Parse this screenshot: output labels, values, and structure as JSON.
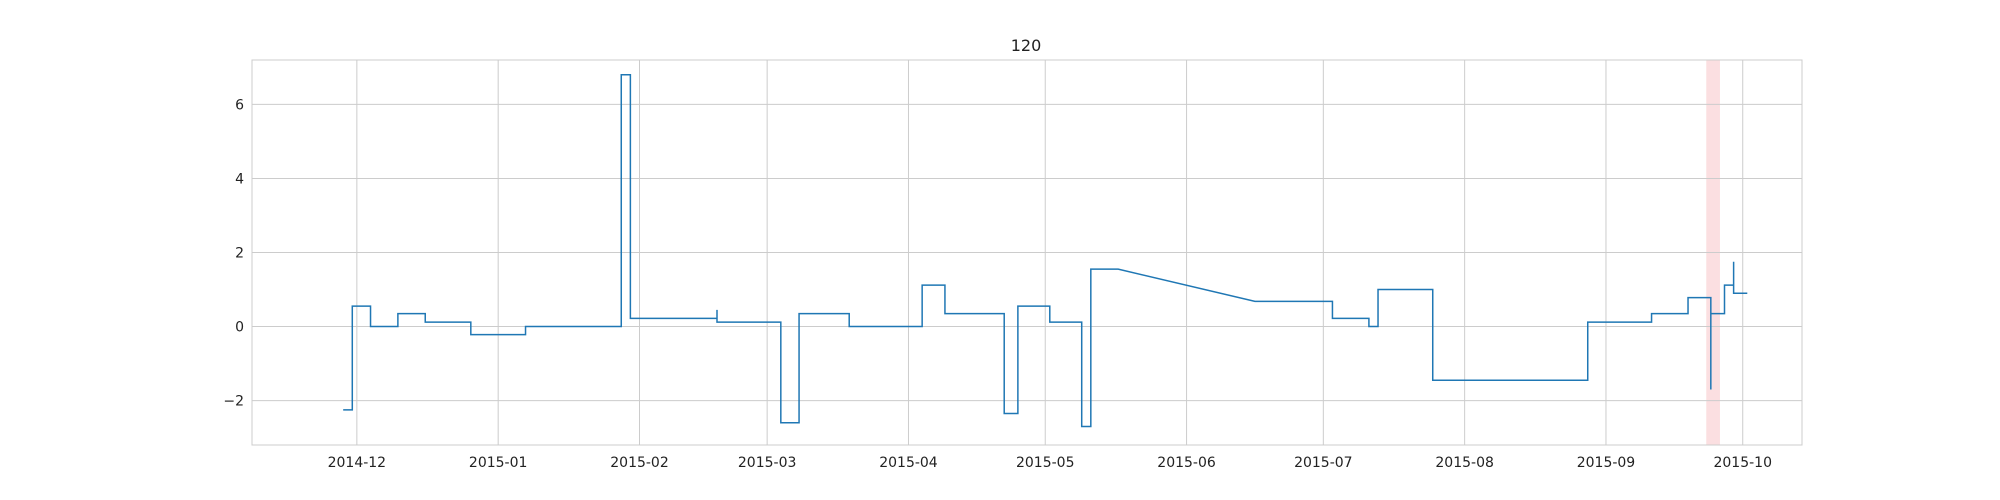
{
  "chart_data": {
    "type": "line",
    "title": "120",
    "xlabel": "",
    "ylabel": "",
    "grid": true,
    "legend": false,
    "x_range": [
      "2014-11-08",
      "2015-10-14"
    ],
    "ylim": [
      -3.2,
      7.2
    ],
    "x_ticks": [
      "2014-12",
      "2015-01",
      "2015-02",
      "2015-03",
      "2015-04",
      "2015-05",
      "2015-06",
      "2015-07",
      "2015-08",
      "2015-09",
      "2015-10"
    ],
    "y_ticks": [
      -2,
      0,
      2,
      4,
      6
    ],
    "y_tick_labels": [
      "−2",
      "0",
      "2",
      "4",
      "6"
    ],
    "highlight_span": {
      "start": "2015-09-23",
      "end": "2015-09-26",
      "color": "#f7c5c9"
    },
    "series": [
      {
        "color": "#1f77b4",
        "points": [
          [
            "2014-11-28",
            -2.25
          ],
          [
            "2014-11-30",
            -2.25
          ],
          [
            "2014-11-30",
            0.55
          ],
          [
            "2014-12-04",
            0.55
          ],
          [
            "2014-12-04",
            0.0
          ],
          [
            "2014-12-10",
            0.0
          ],
          [
            "2014-12-10",
            0.35
          ],
          [
            "2014-12-16",
            0.35
          ],
          [
            "2014-12-16",
            0.12
          ],
          [
            "2014-12-26",
            0.12
          ],
          [
            "2014-12-26",
            -0.22
          ],
          [
            "2015-01-07",
            -0.22
          ],
          [
            "2015-01-07",
            0.0
          ],
          [
            "2015-01-28",
            0.0
          ],
          [
            "2015-01-28",
            6.8
          ],
          [
            "2015-01-30",
            6.8
          ],
          [
            "2015-01-30",
            0.22
          ],
          [
            "2015-02-18",
            0.22
          ],
          [
            "2015-02-18",
            0.45
          ],
          [
            "2015-02-18",
            0.12
          ],
          [
            "2015-03-04",
            0.12
          ],
          [
            "2015-03-04",
            -2.6
          ],
          [
            "2015-03-08",
            -2.6
          ],
          [
            "2015-03-08",
            0.35
          ],
          [
            "2015-03-19",
            0.35
          ],
          [
            "2015-03-19",
            0.0
          ],
          [
            "2015-04-04",
            0.0
          ],
          [
            "2015-04-04",
            1.12
          ],
          [
            "2015-04-09",
            1.12
          ],
          [
            "2015-04-09",
            0.35
          ],
          [
            "2015-04-22",
            0.35
          ],
          [
            "2015-04-22",
            -2.35
          ],
          [
            "2015-04-25",
            -2.35
          ],
          [
            "2015-04-25",
            0.55
          ],
          [
            "2015-05-02",
            0.55
          ],
          [
            "2015-05-02",
            0.12
          ],
          [
            "2015-05-09",
            0.12
          ],
          [
            "2015-05-09",
            -2.7
          ],
          [
            "2015-05-11",
            -2.7
          ],
          [
            "2015-05-11",
            1.55
          ],
          [
            "2015-05-17",
            1.55
          ],
          [
            "2015-06-16",
            0.68
          ],
          [
            "2015-07-03",
            0.68
          ],
          [
            "2015-07-03",
            0.22
          ],
          [
            "2015-07-11",
            0.22
          ],
          [
            "2015-07-11",
            0.0
          ],
          [
            "2015-07-13",
            0.0
          ],
          [
            "2015-07-13",
            1.0
          ],
          [
            "2015-07-25",
            1.0
          ],
          [
            "2015-07-25",
            -1.45
          ],
          [
            "2015-08-28",
            -1.45
          ],
          [
            "2015-08-28",
            0.12
          ],
          [
            "2015-09-11",
            0.12
          ],
          [
            "2015-09-11",
            0.35
          ],
          [
            "2015-09-19",
            0.35
          ],
          [
            "2015-09-19",
            0.78
          ],
          [
            "2015-09-24",
            0.78
          ],
          [
            "2015-09-24",
            -1.7
          ],
          [
            "2015-09-24",
            0.35
          ],
          [
            "2015-09-27",
            0.35
          ],
          [
            "2015-09-27",
            1.12
          ],
          [
            "2015-09-29",
            1.12
          ],
          [
            "2015-09-29",
            1.75
          ],
          [
            "2015-09-29",
            0.9
          ],
          [
            "2015-10-02",
            0.9
          ]
        ]
      }
    ]
  }
}
